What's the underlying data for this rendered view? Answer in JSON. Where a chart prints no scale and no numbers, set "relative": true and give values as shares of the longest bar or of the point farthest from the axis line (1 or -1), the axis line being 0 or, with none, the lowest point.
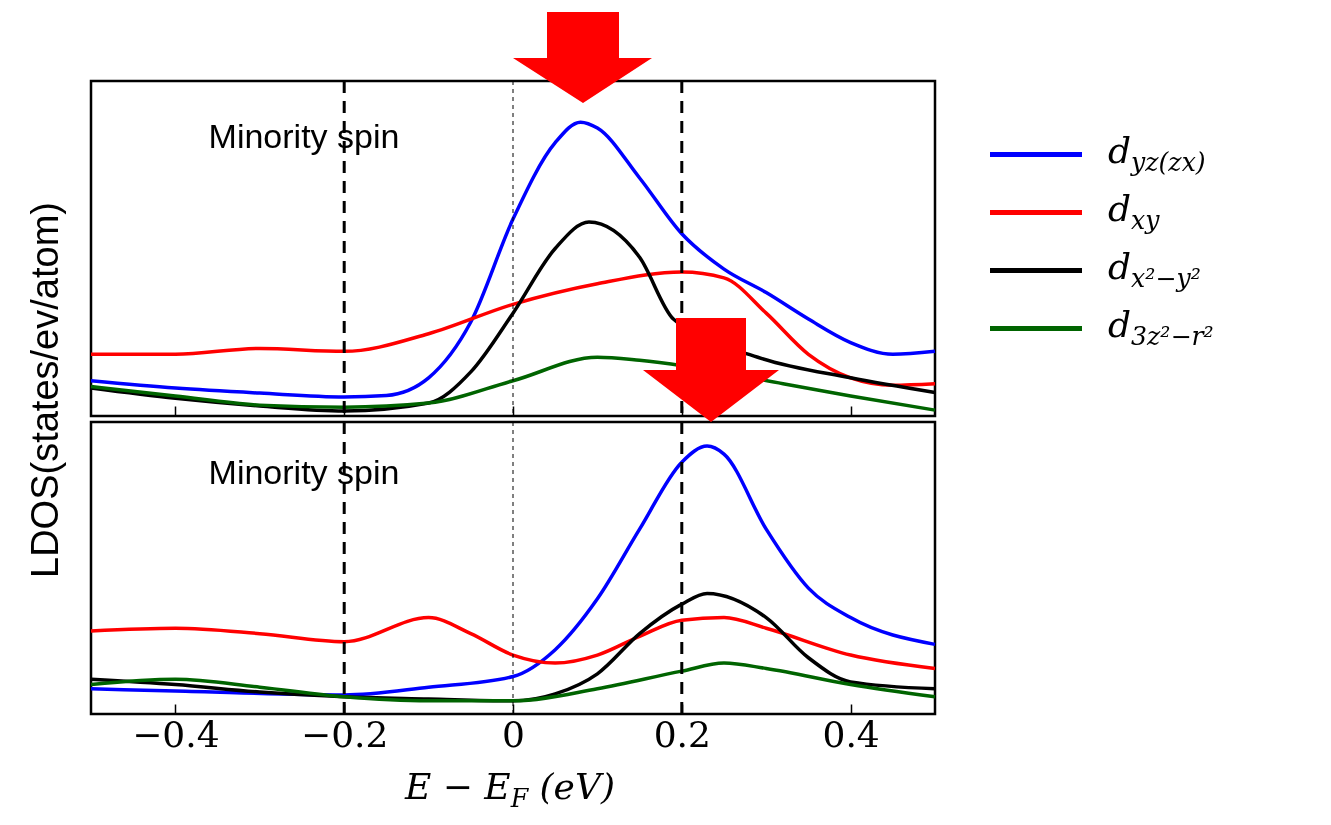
{
  "chart_data": [
    {
      "type": "line",
      "relative": true,
      "ylabel": "LDOS(states/ev/atom)",
      "legend": "right",
      "tick_labels": false,
      "line_style": "solid",
      "grid": false,
      "xlim": [
        -0.5,
        0.5
      ],
      "xticks": [
        -0.4,
        -0.2,
        0,
        0.2,
        0.4
      ],
      "annotations": [
        "Minority spin"
      ],
      "ref_lines": [
        {
          "axis": "x",
          "value": -0.2,
          "line_style": "dashed"
        },
        {
          "axis": "x",
          "value": 0,
          "line_style": "dotted"
        },
        {
          "axis": "x",
          "value": 0.2,
          "line_style": "dashed"
        }
      ],
      "series": [
        {
          "name": "d$_{yz(zx)}$",
          "color": "#0000ff",
          "x": [
            -0.5,
            -0.4,
            -0.3,
            -0.2,
            -0.15,
            -0.1,
            -0.05,
            0,
            0.05,
            0.08,
            0.1,
            0.15,
            0.2,
            0.25,
            0.3,
            0.35,
            0.4,
            0.45,
            0.5
          ],
          "values": [
            0.12,
            0.095,
            0.078,
            0.065,
            0.07,
            0.13,
            0.32,
            0.67,
            0.93,
            1,
            0.98,
            0.81,
            0.62,
            0.5,
            0.42,
            0.33,
            0.25,
            0.21,
            0.22
          ]
        },
        {
          "name": "d$_{xy}$",
          "color": "#ff0000",
          "x": [
            -0.5,
            -0.4,
            -0.3,
            -0.2,
            -0.1,
            0,
            0.1,
            0.2,
            0.25,
            0.3,
            0.35,
            0.4,
            0.45,
            0.5
          ],
          "values": [
            0.21,
            0.21,
            0.23,
            0.22,
            0.28,
            0.38,
            0.45,
            0.49,
            0.47,
            0.35,
            0.21,
            0.13,
            0.105,
            0.11
          ]
        },
        {
          "name": "d$_{x²−y²}$",
          "color": "#000000",
          "x": [
            -0.5,
            -0.4,
            -0.3,
            -0.2,
            -0.1,
            -0.05,
            0,
            0.05,
            0.09,
            0.15,
            0.19,
            0.29,
            0.4,
            0.5
          ],
          "values": [
            0.095,
            0.06,
            0.034,
            0.017,
            0.044,
            0.15,
            0.35,
            0.57,
            0.66,
            0.54,
            0.33,
            0.2,
            0.13,
            0.08
          ]
        },
        {
          "name": "d$_{3z²−r²}$",
          "color": "#006400",
          "x": [
            -0.5,
            -0.4,
            -0.3,
            -0.2,
            -0.1,
            0,
            0.1,
            0.15,
            0.32,
            0.4,
            0.5
          ],
          "values": [
            0.1,
            0.068,
            0.037,
            0.03,
            0.044,
            0.12,
            0.2,
            0.19,
            0.11,
            0.068,
            0.02
          ]
        }
      ]
    },
    {
      "type": "line",
      "relative": true,
      "xlabel": "E − E$_{F}$ (eV)",
      "tick_labels": "x",
      "line_style": "solid",
      "grid": false,
      "xlim": [
        -0.5,
        0.5
      ],
      "xticks": [
        {
          "value": -0.4,
          "label": "−0.4"
        },
        {
          "value": -0.2,
          "label": "−0.2"
        },
        0,
        0.2,
        0.4
      ],
      "annotations": [
        "Minority spin"
      ],
      "ref_lines": [
        {
          "axis": "x",
          "value": -0.2,
          "line_style": "dashed"
        },
        {
          "axis": "x",
          "value": 0,
          "line_style": "dotted"
        },
        {
          "axis": "x",
          "value": 0.2,
          "line_style": "dashed"
        }
      ],
      "series": [
        {
          "color": "#0000ff",
          "x": [
            -0.5,
            -0.4,
            -0.2,
            -0.1,
            0,
            0.05,
            0.1,
            0.15,
            0.2,
            0.23,
            0.25,
            0.3,
            0.35,
            0.4,
            0.5
          ],
          "values": [
            0.094,
            0.086,
            0.071,
            0.1,
            0.14,
            0.24,
            0.43,
            0.69,
            0.94,
            1,
            0.97,
            0.69,
            0.47,
            0.36,
            0.26
          ]
        },
        {
          "color": "#ff0000",
          "x": [
            -0.5,
            -0.4,
            -0.3,
            -0.2,
            -0.1,
            -0.05,
            0,
            0.05,
            0.1,
            0.15,
            0.2,
            0.25,
            0.3,
            0.4,
            0.5
          ],
          "values": [
            0.31,
            0.32,
            0.3,
            0.27,
            0.36,
            0.3,
            0.22,
            0.19,
            0.22,
            0.29,
            0.35,
            0.36,
            0.32,
            0.22,
            0.17
          ]
        },
        {
          "color": "#000000",
          "x": [
            -0.5,
            -0.4,
            -0.3,
            -0.2,
            -0.1,
            0,
            0.05,
            0.1,
            0.15,
            0.2,
            0.23,
            0.3,
            0.35,
            0.4,
            0.5
          ],
          "values": [
            0.13,
            0.11,
            0.082,
            0.064,
            0.056,
            0.049,
            0.075,
            0.15,
            0.3,
            0.41,
            0.45,
            0.36,
            0.21,
            0.12,
            0.094
          ]
        },
        {
          "color": "#006400",
          "x": [
            -0.5,
            -0.4,
            -0.3,
            -0.2,
            -0.1,
            0,
            0.1,
            0.2,
            0.25,
            0.3,
            0.4,
            0.5
          ],
          "values": [
            0.11,
            0.13,
            0.1,
            0.064,
            0.049,
            0.049,
            0.094,
            0.16,
            0.19,
            0.17,
            0.11,
            0.064
          ]
        }
      ]
    }
  ]
}
